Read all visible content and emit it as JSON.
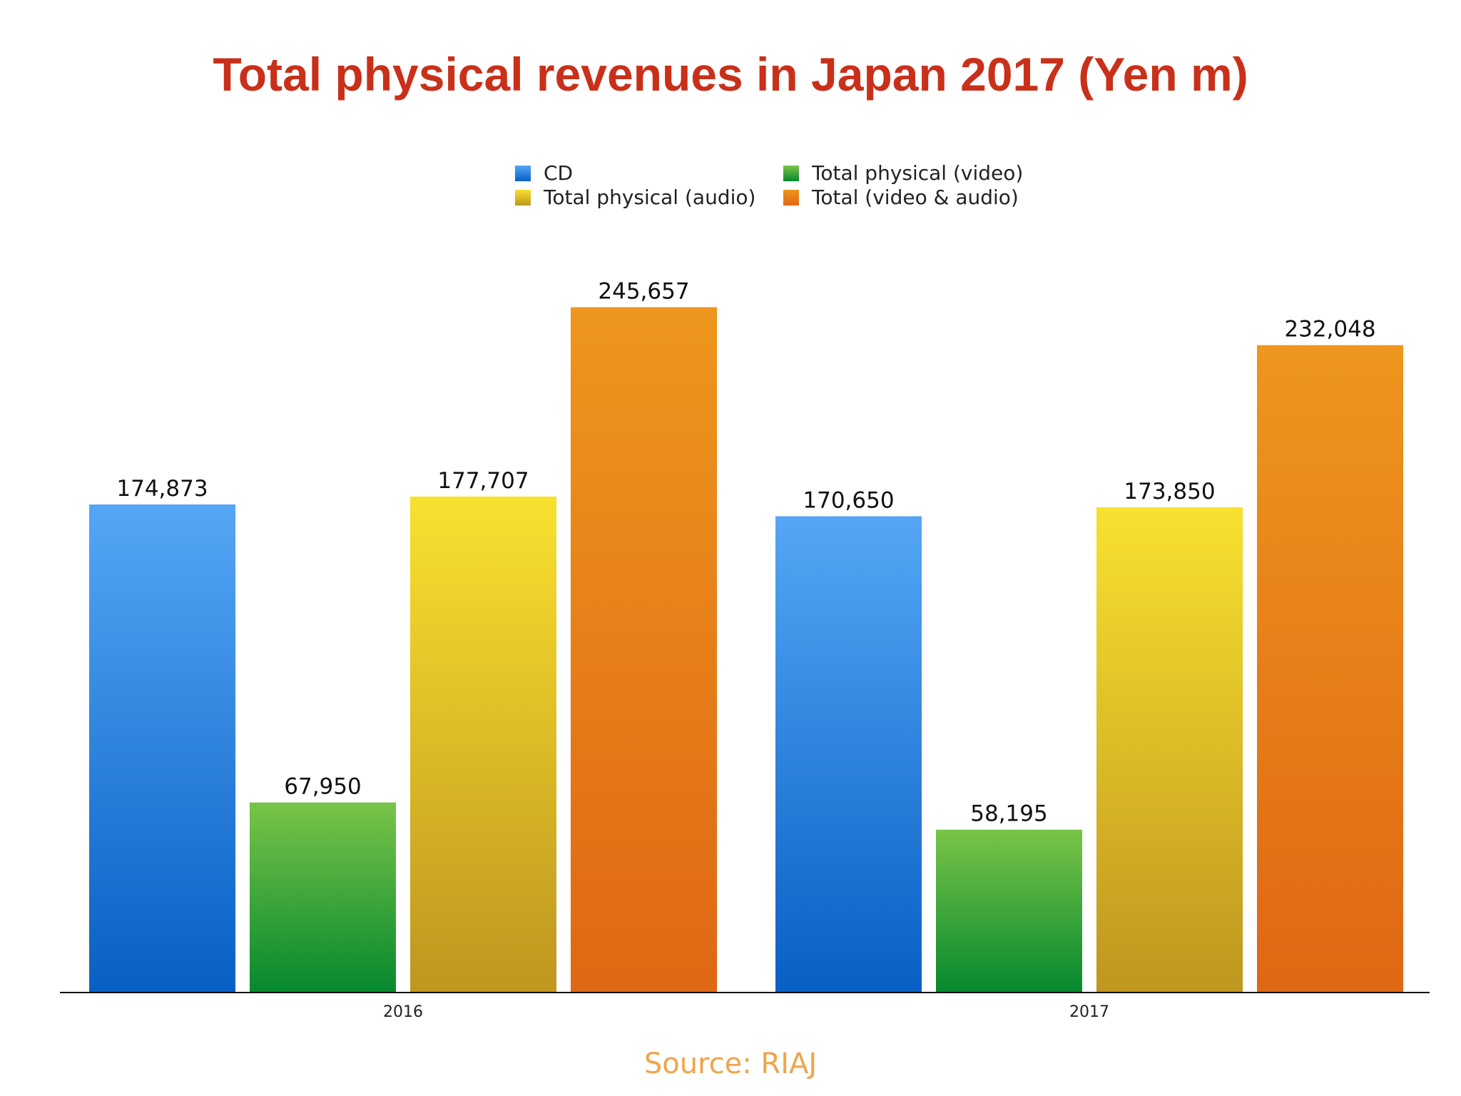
{
  "title": "Total physical revenues in Japan 2017 (Yen m)",
  "source": "Source: RIAJ",
  "chart_data": {
    "type": "bar",
    "title": "Total physical revenues in Japan 2017 (Yen m)",
    "xlabel": "",
    "ylabel": "",
    "ylim": [
      0,
      265000
    ],
    "grid": false,
    "legend_position": "top-center",
    "categories": [
      "2016",
      "2017"
    ],
    "series": [
      {
        "name": "CD",
        "values": [
          174873,
          170650
        ],
        "labels": [
          "174,873",
          "170,650"
        ],
        "color_top": "#55a6f5",
        "color_bottom": "#0860c4"
      },
      {
        "name": "Total physical (video)",
        "values": [
          67950,
          58195
        ],
        "labels": [
          "67,950",
          "58,195"
        ],
        "color_top": "#79c448",
        "color_bottom": "#06892e"
      },
      {
        "name": "Total physical (audio)",
        "values": [
          177707,
          173850
        ],
        "labels": [
          "177,707",
          "173,850"
        ],
        "color_top": "#f8e12f",
        "color_bottom": "#bf961f"
      },
      {
        "name": "Total (video & audio)",
        "values": [
          245657,
          232048
        ],
        "labels": [
          "245,657",
          "232,048"
        ],
        "color_top": "#ee961d",
        "color_bottom": "#df6714"
      }
    ]
  }
}
